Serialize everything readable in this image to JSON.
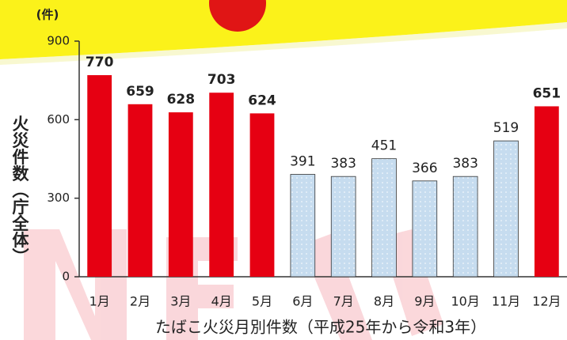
{
  "chart_data": {
    "type": "bar",
    "title": "たばこ火災月別件数（平成25年から令和3年）",
    "y_label": "火災件数（庁全体）",
    "y_unit": "(件)",
    "categories": [
      "1月",
      "2月",
      "3月",
      "4月",
      "5月",
      "6月",
      "7月",
      "8月",
      "9月",
      "10月",
      "11月",
      "12月"
    ],
    "values": [
      770,
      659,
      628,
      703,
      624,
      391,
      383,
      451,
      366,
      383,
      519,
      651
    ],
    "colors": [
      "#e60012",
      "#e60012",
      "#e60012",
      "#e60012",
      "#e60012",
      "#c6dcef",
      "#c6dcef",
      "#c6dcef",
      "#c6dcef",
      "#c6dcef",
      "#c6dcef",
      "#e60012"
    ],
    "ylim": [
      0,
      900
    ],
    "yticks": [
      0,
      300,
      600,
      900
    ],
    "grid": false
  }
}
